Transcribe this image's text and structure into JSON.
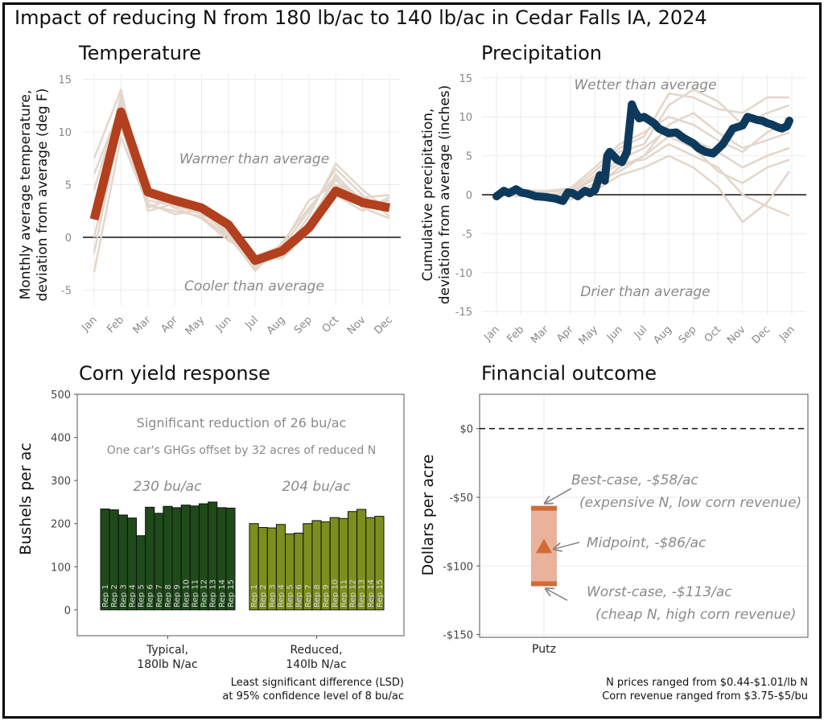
{
  "title": "Impact of reducing N from 180 lb/ac to 140 lb/ac in Cedar Falls IA, 2024",
  "colors": {
    "temp_line": "#b23f1e",
    "bg_lines": "#e3d6cb",
    "precip_line": "#0d3a5c",
    "typical_bar": "#1f4a1a",
    "reduced_bar": "#7c8f1e",
    "range_fill": "#e9b29a",
    "range_cap": "#d26b36"
  },
  "chart_data": [
    {
      "type": "line",
      "title": "Temperature",
      "ylabel": "Monthly average temperature,\ndeviation from average (deg F)",
      "ylabel_lines": [
        "Monthly average temperature,",
        "deviation from average (deg F)"
      ],
      "ylim": [
        -6.5,
        15.5
      ],
      "yticks": [
        -5,
        0,
        5,
        10,
        15
      ],
      "yticklabels": [
        "-5",
        "0",
        "5",
        "10",
        "15"
      ],
      "categories": [
        "Jan",
        "Feb",
        "Mar",
        "Apr",
        "May",
        "Jun",
        "Jul",
        "Aug",
        "Sep",
        "Oct",
        "Nov",
        "Dec"
      ],
      "series": [
        {
          "name": "2024",
          "values": [
            1.7,
            11.9,
            4.3,
            3.5,
            2.8,
            1.2,
            -2.2,
            -1.3,
            0.9,
            4.4,
            3.3,
            2.8
          ]
        }
      ],
      "background_series": [
        [
          7.5,
          14.0,
          2.5,
          3.2,
          2.5,
          0.5,
          -2.5,
          -1.8,
          1.5,
          5.5,
          3.0,
          3.5
        ],
        [
          -3.3,
          9.5,
          3.0,
          2.5,
          2.0,
          0.0,
          -3.0,
          -1.0,
          2.5,
          6.5,
          4.0,
          2.0
        ],
        [
          4.5,
          13.0,
          3.5,
          3.0,
          2.2,
          0.8,
          -2.0,
          -2.0,
          0.5,
          4.0,
          2.5,
          3.8
        ],
        [
          0.0,
          10.5,
          2.8,
          3.8,
          3.0,
          0.3,
          -2.8,
          -1.5,
          2.0,
          7.0,
          4.5,
          2.5
        ],
        [
          6.0,
          12.5,
          4.0,
          2.8,
          1.8,
          -0.3,
          -1.8,
          -0.8,
          3.5,
          5.0,
          3.8,
          4.0
        ],
        [
          -1.5,
          11.0,
          3.2,
          2.2,
          2.6,
          0.9,
          -2.4,
          -1.2,
          1.0,
          6.0,
          2.8,
          1.8
        ],
        [
          2.5,
          13.5,
          4.5,
          3.6,
          2.4,
          0.2,
          -3.2,
          -0.5,
          2.8,
          5.8,
          3.5,
          3.0
        ]
      ],
      "annotations": [
        "Warmer than average",
        "Cooler than average"
      ]
    },
    {
      "type": "line",
      "title": "Precipitation",
      "ylabel": "Cumulative precipitation,\ndeviation from average (inches)",
      "ylabel_lines": [
        "Cumulative precipitation,",
        "deviation from average (inches)"
      ],
      "ylim": [
        -15.5,
        15.5
      ],
      "yticks": [
        -15,
        -10,
        -5,
        0,
        5,
        10,
        15
      ],
      "yticklabels": [
        "-15",
        "-10",
        "-5",
        "0",
        "5",
        "10",
        "15"
      ],
      "xlim": [
        0,
        12
      ],
      "xticks": [
        0,
        1,
        2,
        3,
        4,
        5,
        6,
        7,
        8,
        9,
        10,
        11,
        12
      ],
      "xticklabels": [
        "Jan",
        "Feb",
        "Mar",
        "Apr",
        "May",
        "Jun",
        "Jul",
        "Aug",
        "Sep",
        "Oct",
        "Nov",
        "Dec",
        "Jan"
      ],
      "series": [
        {
          "name": "2024",
          "x": [
            0,
            0.3,
            0.5,
            0.8,
            1,
            1.3,
            1.6,
            2,
            2.4,
            2.7,
            2.9,
            3.1,
            3.3,
            3.6,
            3.8,
            4,
            4.2,
            4.4,
            4.5,
            4.6,
            4.9,
            5.1,
            5.3,
            5.5,
            5.6,
            5.8,
            6,
            6.2,
            6.4,
            6.6,
            7,
            7.3,
            7.6,
            8,
            8.2,
            8.5,
            8.8,
            9.2,
            9.6,
            10,
            10.2,
            10.4,
            10.6,
            10.8,
            11,
            11.2,
            11.4,
            11.6,
            11.8,
            11.9
          ],
          "values": [
            -0.2,
            0.5,
            0.2,
            0.7,
            0.3,
            0.1,
            -0.2,
            -0.3,
            -0.5,
            -0.8,
            0.3,
            0.2,
            -0.2,
            0.5,
            0.2,
            0.6,
            2.5,
            1.8,
            5.0,
            5.5,
            4.5,
            4.2,
            5.5,
            11.6,
            10.8,
            9.8,
            10.0,
            9.6,
            9.2,
            8.5,
            7.9,
            8.0,
            7.3,
            6.6,
            6.0,
            5.5,
            5.3,
            6.5,
            8.5,
            8.9,
            10.0,
            9.8,
            9.6,
            9.5,
            9.2,
            9.0,
            8.7,
            8.5,
            8.8,
            9.5
          ]
        }
      ],
      "background_series": [
        {
          "x": [
            0,
            1,
            2,
            3,
            4,
            5,
            6,
            7,
            8,
            9,
            10,
            11,
            11.9
          ],
          "values": [
            0,
            0.4,
            -0.3,
            0.2,
            2.5,
            5.5,
            6.5,
            11.5,
            13.5,
            12.0,
            9.0,
            10.5,
            11.5
          ]
        },
        {
          "x": [
            0,
            1,
            2,
            3,
            4,
            5,
            6,
            7,
            8,
            9,
            10,
            11,
            11.9
          ],
          "values": [
            0,
            0.1,
            0.2,
            -0.4,
            1.5,
            3.0,
            5.0,
            9.0,
            10.5,
            8.0,
            6.0,
            7.0,
            8.0
          ]
        },
        {
          "x": [
            0,
            1,
            2,
            3,
            4,
            5,
            6,
            7,
            8,
            9,
            10,
            11,
            11.9
          ],
          "values": [
            0,
            0.3,
            0.0,
            0.3,
            2.0,
            4.0,
            4.5,
            6.5,
            5.0,
            3.5,
            0.0,
            -1.5,
            -2.7
          ]
        },
        {
          "x": [
            0,
            1,
            2,
            3,
            4,
            5,
            6,
            7,
            8,
            9,
            10,
            11,
            11.9
          ],
          "values": [
            0,
            0.5,
            0.4,
            0.5,
            3.0,
            6.0,
            7.5,
            13.0,
            12.5,
            11.0,
            10.5,
            12.5,
            12.5
          ]
        },
        {
          "x": [
            0,
            1,
            2,
            3,
            4,
            5,
            6,
            7,
            8,
            9,
            10,
            11,
            11.9
          ],
          "values": [
            0,
            -0.2,
            -0.1,
            -0.6,
            0.5,
            2.5,
            3.5,
            5.0,
            3.5,
            1.0,
            -3.5,
            -1.0,
            3.0
          ]
        },
        {
          "x": [
            0,
            1,
            2,
            3,
            4,
            5,
            6,
            7,
            8,
            9,
            10,
            11,
            11.9
          ],
          "values": [
            0,
            0.2,
            0.1,
            0.0,
            2.2,
            4.5,
            6.0,
            8.5,
            7.0,
            5.5,
            3.5,
            5.0,
            6.0
          ]
        },
        {
          "x": [
            0,
            1,
            2,
            3,
            4,
            5,
            6,
            7,
            8,
            9,
            10,
            11,
            11.9
          ],
          "values": [
            0,
            0.6,
            0.5,
            0.8,
            3.5,
            6.5,
            8.0,
            10.0,
            9.0,
            7.0,
            5.5,
            8.0,
            9.5
          ]
        },
        {
          "x": [
            0,
            1,
            2,
            3,
            4,
            5,
            6,
            7,
            8,
            9,
            10,
            11,
            11.9
          ],
          "values": [
            0,
            0.0,
            -0.4,
            -0.2,
            1.0,
            3.5,
            5.0,
            7.5,
            6.0,
            3.0,
            1.5,
            3.5,
            4.5
          ]
        }
      ],
      "annotations": [
        "Wetter than average",
        "Drier than average"
      ]
    },
    {
      "type": "bar",
      "title": "Corn yield response",
      "ylabel": "Bushels per ac",
      "ylim": [
        -60,
        500
      ],
      "yticks": [
        0,
        100,
        200,
        300,
        400,
        500
      ],
      "yticklabels": [
        "0",
        "100",
        "200",
        "300",
        "400",
        "500"
      ],
      "groups": [
        {
          "label_lines": [
            "Typical,",
            "180lb N/ac"
          ],
          "mean_label": "230 bu/ac",
          "values": [
            234,
            232,
            220,
            213,
            172,
            238,
            224,
            240,
            237,
            243,
            241,
            246,
            250,
            237,
            236
          ]
        },
        {
          "label_lines": [
            "Reduced,",
            "140lb N/ac"
          ],
          "mean_label": "204 bu/ac",
          "values": [
            200,
            191,
            190,
            198,
            176,
            178,
            200,
            207,
            204,
            214,
            212,
            228,
            233,
            214,
            217
          ]
        }
      ],
      "bar_labels": [
        "Rep 1",
        "Rep 2",
        "Rep 3",
        "Rep 4",
        "Rep 5",
        "Rep 6",
        "Rep 7",
        "Rep 8",
        "Rep 9",
        "Rep 10",
        "Rep 11",
        "Rep 12",
        "Rep 13",
        "Rep 14",
        "Rep 15"
      ],
      "annotations": [
        "Significant reduction of 26 bu/ac",
        "One car's GHGs offset by 32 acres of reduced N"
      ],
      "footnote_lines": [
        "Least significant difference (LSD)",
        "at 95% confidence level of 8 bu/ac"
      ]
    },
    {
      "type": "range",
      "title": "Financial outcome",
      "ylabel": "Dollars per acre",
      "ylim": [
        -152,
        25
      ],
      "yticks": [
        0,
        -50,
        -100,
        -150
      ],
      "yticklabels": [
        "$0",
        "-$50",
        "-$100",
        "-$150"
      ],
      "category": "Putz",
      "best": -58,
      "mid": -86,
      "worst": -113,
      "annotations": {
        "best": "Best-case, -$58/ac",
        "best_sub": "(expensive N, low corn revenue)",
        "mid": "Midpoint, -$86/ac",
        "worst": "Worst-case, -$113/ac",
        "worst_sub": "(cheap N,  high corn revenue)"
      },
      "footnote_lines": [
        "N prices ranged from $0.44-$1.01/lb N",
        "Corn revenue ranged from $3.75-$5/bu"
      ]
    }
  ]
}
